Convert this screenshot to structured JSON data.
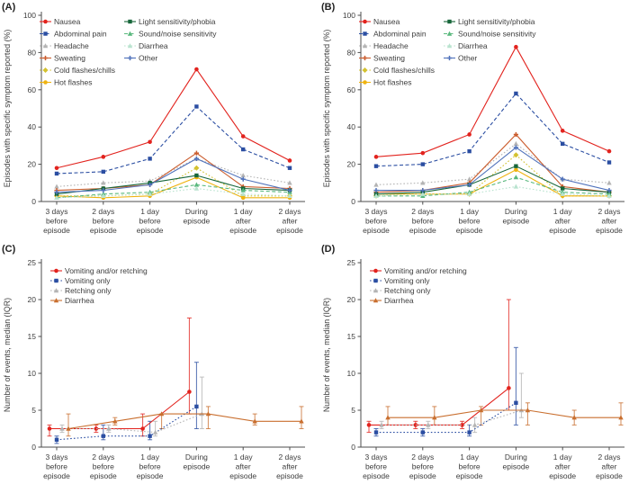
{
  "figure_title": "Symptom episode figure",
  "chart_data": [
    {
      "label": "(A)",
      "type": "line",
      "ylabel": "Episodes with specific symptom reported (%)",
      "ylim": [
        0,
        100
      ],
      "yticks": [
        0,
        20,
        40,
        60,
        80,
        100
      ],
      "categories": [
        "3 days|before|episode",
        "2 days|before|episode",
        "1 day|before|episode",
        "During|episode",
        "1 day|after|episode",
        "2 days|after|episode"
      ],
      "legend_layout": {
        "columns": [
          {
            "lineX": 44,
            "textX": 60,
            "items": [
              0,
              1,
              2,
              3,
              4,
              5
            ]
          },
          {
            "lineX": 138,
            "textX": 154,
            "items": [
              6,
              7,
              8,
              9
            ]
          }
        ],
        "y0": 24,
        "dy": 13.5
      },
      "series": [
        {
          "name": "Nausea",
          "color": "#e2231e",
          "marker": "circle",
          "line": "solid",
          "values": [
            18,
            24,
            32,
            71,
            35,
            22
          ]
        },
        {
          "name": "Abdominal pain",
          "color": "#2b4ea2",
          "marker": "square",
          "line": "dashed",
          "values": [
            15,
            16,
            23,
            51,
            28,
            18
          ]
        },
        {
          "name": "Headache",
          "color": "#b4b4b4",
          "marker": "triangle",
          "line": "dotted",
          "values": [
            8,
            10,
            11,
            23,
            14,
            10
          ]
        },
        {
          "name": "Sweating",
          "color": "#cb5d2e",
          "marker": "plus",
          "line": "solid",
          "values": [
            6,
            7,
            9,
            26,
            8,
            7
          ]
        },
        {
          "name": "Cold flashes/chills",
          "color": "#d3c12f",
          "marker": "diamond",
          "line": "dotted",
          "values": [
            3,
            3,
            4,
            18,
            3,
            3
          ]
        },
        {
          "name": "Hot flashes",
          "color": "#efb310",
          "marker": "circle",
          "line": "solid",
          "values": [
            3,
            2,
            3,
            13,
            2,
            2
          ]
        },
        {
          "name": "Light sensitivity/phobia",
          "color": "#17663a",
          "marker": "square",
          "line": "solid",
          "values": [
            4,
            7,
            10,
            14,
            7,
            6
          ]
        },
        {
          "name": "Sound/noise sensitivity",
          "color": "#59b87d",
          "marker": "triangle",
          "line": "dashed",
          "values": [
            2,
            4,
            5,
            9,
            6,
            5
          ]
        },
        {
          "name": "Diarrhea",
          "color": "#b9e3cf",
          "marker": "triangle",
          "line": "dotted",
          "values": [
            2,
            3,
            4,
            7,
            4,
            3
          ]
        },
        {
          "name": "Other",
          "color": "#5072bb",
          "marker": "plus",
          "line": "solid",
          "values": [
            5,
            6,
            9,
            23,
            12,
            6
          ]
        }
      ]
    },
    {
      "label": "(B)",
      "type": "line",
      "ylabel": "Episodes with specific symptom reported (%)",
      "ylim": [
        0,
        100
      ],
      "yticks": [
        0,
        20,
        40,
        60,
        80,
        100
      ],
      "categories": [
        "3 days|before|episode",
        "2 days|before|episode",
        "1 day|before|episode",
        "During|episode",
        "1 day|after|episode",
        "2 days|after|episode"
      ],
      "legend_layout": {
        "columns": [
          {
            "lineX": 44,
            "textX": 60,
            "items": [
              0,
              1,
              2,
              3,
              4,
              5
            ]
          },
          {
            "lineX": 138,
            "textX": 154,
            "items": [
              6,
              7,
              8,
              9
            ]
          }
        ],
        "y0": 24,
        "dy": 13.5
      },
      "series": [
        {
          "name": "Nausea",
          "color": "#e2231e",
          "marker": "circle",
          "line": "solid",
          "values": [
            24,
            26,
            36,
            83,
            38,
            27
          ]
        },
        {
          "name": "Abdominal pain",
          "color": "#2b4ea2",
          "marker": "square",
          "line": "dashed",
          "values": [
            19,
            20,
            27,
            58,
            31,
            21
          ]
        },
        {
          "name": "Headache",
          "color": "#b4b4b4",
          "marker": "triangle",
          "line": "dotted",
          "values": [
            9,
            10,
            12,
            31,
            12,
            10
          ]
        },
        {
          "name": "Sweating",
          "color": "#cb5d2e",
          "marker": "plus",
          "line": "solid",
          "values": [
            5,
            6,
            10,
            36,
            8,
            5
          ]
        },
        {
          "name": "Cold flashes/chills",
          "color": "#d3c12f",
          "marker": "diamond",
          "line": "dotted",
          "values": [
            3,
            4,
            4,
            25,
            3,
            3
          ]
        },
        {
          "name": "Hot flashes",
          "color": "#efb310",
          "marker": "circle",
          "line": "solid",
          "values": [
            4,
            4,
            4,
            17,
            3,
            3
          ]
        },
        {
          "name": "Light sensitivity/phobia",
          "color": "#17663a",
          "marker": "square",
          "line": "solid",
          "values": [
            4,
            5,
            9,
            19,
            7,
            5
          ]
        },
        {
          "name": "Sound/noise sensitivity",
          "color": "#59b87d",
          "marker": "triangle",
          "line": "dashed",
          "values": [
            3,
            3,
            5,
            13,
            5,
            4
          ]
        },
        {
          "name": "Diarrhea",
          "color": "#b9e3cf",
          "marker": "triangle",
          "line": "dotted",
          "values": [
            3,
            4,
            4,
            8,
            4,
            3
          ]
        },
        {
          "name": "Other",
          "color": "#5072bb",
          "marker": "plus",
          "line": "solid",
          "values": [
            6,
            6,
            9,
            29,
            12,
            6
          ]
        }
      ]
    },
    {
      "label": "(C)",
      "type": "line-errorbar",
      "ylabel": "Number of events, median (IQR)",
      "ylim": [
        0,
        25
      ],
      "yticks": [
        0,
        5,
        10,
        15,
        20,
        25
      ],
      "categories": [
        "3 days|before|episode",
        "2 days|before|episode",
        "1 day|before|episode",
        "During|episode",
        "1 day|after|episode",
        "2 days|after|episode"
      ],
      "legend_layout": {
        "columns": [
          {
            "lineX": 56,
            "textX": 72,
            "items": [
              0,
              1,
              2,
              3
            ]
          }
        ],
        "y0": 32,
        "dy": 11
      },
      "series": [
        {
          "name": "Vomiting and/or retching",
          "color": "#e2231e",
          "marker": "circle",
          "line": "solid",
          "offset": -8,
          "values": [
            2.5,
            2.5,
            2.5,
            7.5,
            null,
            null
          ],
          "iqr": [
            [
              1.5,
              3
            ],
            [
              2,
              3
            ],
            [
              1.5,
              4.5
            ],
            [
              4.5,
              17.5
            ],
            null,
            null
          ]
        },
        {
          "name": "Vomiting only",
          "color": "#2b4ea2",
          "marker": "square",
          "line": "dotted",
          "offset": 0,
          "values": [
            1,
            1.5,
            1.5,
            5.5,
            null,
            null
          ],
          "iqr": [
            [
              0.5,
              1.5
            ],
            [
              1,
              3
            ],
            [
              1,
              3.5
            ],
            [
              2.5,
              11.5
            ],
            null,
            null
          ]
        },
        {
          "name": "Retching only",
          "color": "#b4b4b4",
          "marker": "triangle",
          "line": "dotted",
          "offset": 6,
          "values": [
            2.5,
            2.5,
            2,
            4.5,
            null,
            null
          ],
          "iqr": [
            [
              2,
              3
            ],
            [
              2,
              3
            ],
            [
              1.5,
              3.5
            ],
            [
              2.5,
              9.5
            ],
            null,
            null
          ]
        },
        {
          "name": "Diarrhea",
          "color": "#c96f2f",
          "marker": "triangle",
          "line": "solid",
          "offset": 13,
          "values": [
            2.5,
            3.5,
            4.5,
            4.5,
            3.5,
            3.5
          ],
          "iqr": [
            [
              1.5,
              4.5
            ],
            [
              3,
              4
            ],
            [
              2.5,
              4.5
            ],
            [
              2.5,
              5.5
            ],
            [
              3,
              4.5
            ],
            [
              2.5,
              5.5
            ]
          ]
        }
      ]
    },
    {
      "label": "(D)",
      "type": "line-errorbar",
      "ylabel": "Number of events, median (IQR)",
      "ylim": [
        0,
        25
      ],
      "yticks": [
        0,
        5,
        10,
        15,
        20,
        25
      ],
      "categories": [
        "3 days|before|episode",
        "2 days|before|episode",
        "1 day|before|episode",
        "During|episode",
        "1 day|after|episode",
        "2 days|after|episode"
      ],
      "legend_layout": {
        "columns": [
          {
            "lineX": 56,
            "textX": 72,
            "items": [
              0,
              1,
              2,
              3
            ]
          }
        ],
        "y0": 32,
        "dy": 11
      },
      "series": [
        {
          "name": "Vomiting and/or retching",
          "color": "#e2231e",
          "marker": "circle",
          "line": "solid",
          "offset": -8,
          "values": [
            3,
            3,
            3,
            8,
            null,
            null
          ],
          "iqr": [
            [
              2,
              3.5
            ],
            [
              2.5,
              3.5
            ],
            [
              2.5,
              3.5
            ],
            [
              5,
              20
            ],
            null,
            null
          ]
        },
        {
          "name": "Vomiting only",
          "color": "#2b4ea2",
          "marker": "square",
          "line": "dotted",
          "offset": 0,
          "values": [
            2,
            2,
            2,
            6,
            null,
            null
          ],
          "iqr": [
            [
              1.5,
              2.5
            ],
            [
              1.5,
              2.5
            ],
            [
              1.5,
              3
            ],
            [
              3,
              13.5
            ],
            null,
            null
          ]
        },
        {
          "name": "Retching only",
          "color": "#b4b4b4",
          "marker": "triangle",
          "line": "dotted",
          "offset": 6,
          "values": [
            3,
            3,
            3,
            5,
            null,
            null
          ],
          "iqr": [
            [
              2.5,
              3.5
            ],
            [
              2.5,
              3.5
            ],
            [
              2,
              4
            ],
            [
              4,
              10
            ],
            null,
            null
          ]
        },
        {
          "name": "Diarrhea",
          "color": "#c96f2f",
          "marker": "triangle",
          "line": "solid",
          "offset": 13,
          "values": [
            4,
            4,
            5,
            5,
            4,
            4
          ],
          "iqr": [
            [
              3,
              5.5
            ],
            [
              3,
              5.5
            ],
            [
              3,
              5.5
            ],
            [
              3,
              6
            ],
            [
              3,
              5
            ],
            [
              3,
              6
            ]
          ]
        }
      ]
    }
  ]
}
